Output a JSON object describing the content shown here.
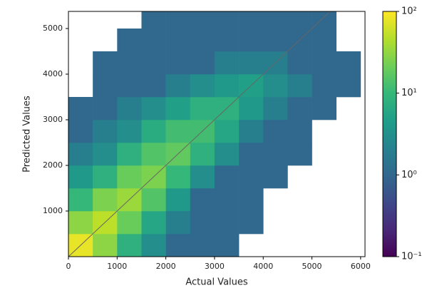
{
  "chart_data": {
    "type": "hist2d",
    "xlabel": "Actual Values",
    "ylabel": "Predicted Values",
    "xlim": [
      0,
      6090
    ],
    "ylim": [
      0,
      5375
    ],
    "xticks": [
      0,
      1000,
      2000,
      3000,
      4000,
      5000,
      6000
    ],
    "yticks": [
      1000,
      2000,
      3000,
      4000,
      5000
    ],
    "x_bins": [
      0,
      500,
      1000,
      1500,
      2000,
      2500,
      3000,
      3500,
      4000,
      4500,
      5000,
      5500,
      6000
    ],
    "y_bins": [
      0,
      500,
      1000,
      1500,
      2000,
      2500,
      3000,
      3500,
      4000,
      4500,
      5000,
      5500
    ],
    "counts": [
      [
        80,
        30,
        8,
        3,
        1,
        1,
        1,
        null,
        null,
        null,
        null,
        null
      ],
      [
        30,
        50,
        20,
        6,
        2,
        1,
        1,
        1,
        null,
        null,
        null,
        null
      ],
      [
        10,
        25,
        35,
        15,
        4,
        1,
        1,
        1,
        null,
        null,
        null,
        null
      ],
      [
        4,
        8,
        20,
        25,
        10,
        3,
        1,
        1,
        1,
        null,
        null,
        null
      ],
      [
        2,
        3,
        8,
        15,
        18,
        8,
        3,
        1,
        1,
        1,
        null,
        null
      ],
      [
        1,
        2,
        3,
        7,
        12,
        12,
        6,
        2,
        1,
        1,
        null,
        null
      ],
      [
        1,
        1,
        2,
        3,
        5,
        8,
        8,
        4,
        2,
        1,
        1,
        null
      ],
      [
        null,
        1,
        1,
        1,
        2,
        3,
        4,
        5,
        3,
        2,
        1,
        1
      ],
      [
        null,
        1,
        1,
        1,
        1,
        1,
        2,
        2,
        2,
        1,
        1,
        1
      ],
      [
        null,
        null,
        1,
        1,
        1,
        1,
        1,
        1,
        1,
        1,
        1,
        null
      ],
      [
        null,
        null,
        null,
        1,
        1,
        1,
        1,
        1,
        1,
        1,
        1,
        null
      ]
    ],
    "colormap": "viridis",
    "color_scale": "log",
    "clim": [
      0.1,
      100
    ],
    "cticks": [
      {
        "value": 0.1,
        "label": "10⁻¹"
      },
      {
        "value": 1,
        "label": "10⁰"
      },
      {
        "value": 10,
        "label": "10¹"
      },
      {
        "value": 100,
        "label": "10²"
      }
    ],
    "reference_line": "y=x"
  }
}
